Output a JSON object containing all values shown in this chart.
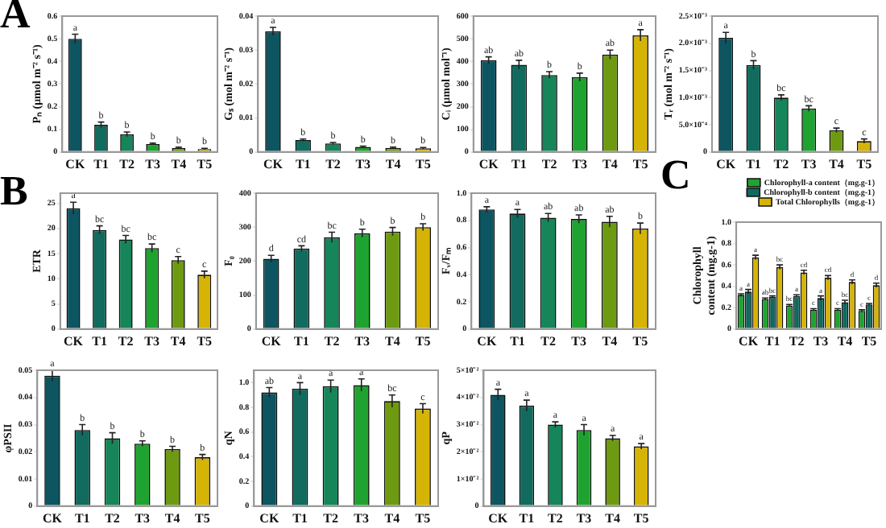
{
  "chart_data": [
    {
      "type": "bar",
      "annotations": [
        "A"
      ],
      "ylabel": "Pₙ (μmol m⁻² s⁻¹)",
      "categories": [
        "CK",
        "T1",
        "T2",
        "T3",
        "T4",
        "T5"
      ],
      "values": [
        0.5,
        0.12,
        0.078,
        0.035,
        0.018,
        0.013
      ],
      "errors": [
        0.02,
        0.012,
        0.01,
        0.004,
        0.003,
        0.003
      ],
      "value_labels": [
        "a",
        "b",
        "b",
        "b",
        "b",
        "b"
      ],
      "colors": [
        "#0d5560",
        "#116b5e",
        "#16855a",
        "#1fa330",
        "#6e9a12",
        "#d6b406"
      ],
      "ylim": [
        0,
        0.6
      ],
      "yticks": [
        0,
        0.1,
        0.2,
        0.3,
        0.4,
        0.5,
        0.6
      ],
      "grid": false,
      "legend": false
    },
    {
      "type": "bar",
      "ylabel": "Gₛ (mol m⁻² s⁻¹)",
      "categories": [
        "CK",
        "T1",
        "T2",
        "T3",
        "T4",
        "T5"
      ],
      "values": [
        0.0355,
        0.0035,
        0.0025,
        0.0015,
        0.0012,
        0.0011
      ],
      "errors": [
        0.0012,
        0.0003,
        0.0003,
        0.0002,
        0.0002,
        0.0002
      ],
      "value_labels": [
        "a",
        "b",
        "b",
        "b",
        "b",
        "b"
      ],
      "colors": [
        "#0d5560",
        "#116b5e",
        "#16855a",
        "#1fa330",
        "#6e9a12",
        "#d6b406"
      ],
      "ylim": [
        0,
        0.04
      ],
      "yticks": [
        0,
        0.01,
        0.02,
        0.03,
        0.04
      ],
      "grid": false,
      "legend": false
    },
    {
      "type": "bar",
      "ylabel": "Cᵢ (μmol mol⁻¹)",
      "categories": [
        "CK",
        "T1",
        "T2",
        "T3",
        "T4",
        "T5"
      ],
      "values": [
        405,
        385,
        340,
        330,
        430,
        515
      ],
      "errors": [
        15,
        20,
        15,
        18,
        20,
        25
      ],
      "value_labels": [
        "ab",
        "ab",
        "b",
        "b",
        "ab",
        "a"
      ],
      "colors": [
        "#0d5560",
        "#116b5e",
        "#16855a",
        "#1fa330",
        "#6e9a12",
        "#d6b406"
      ],
      "ylim": [
        0,
        600
      ],
      "yticks": [
        0,
        100,
        200,
        300,
        400,
        500,
        600
      ],
      "grid": false,
      "legend": false
    },
    {
      "type": "bar",
      "ylabel": "Tᵣ (mol m⁻² s⁻¹)",
      "categories": [
        "CK",
        "T1",
        "T2",
        "T3",
        "T4",
        "T5"
      ],
      "values": [
        0.0021,
        0.0016,
        0.001,
        0.0008,
        0.0004,
        0.0002
      ],
      "errors": [
        0.0001,
        8e-05,
        5e-05,
        5e-05,
        4e-05,
        4e-05
      ],
      "value_labels": [
        "a",
        "b",
        "bc",
        "bc",
        "c",
        "c"
      ],
      "colors": [
        "#0d5560",
        "#116b5e",
        "#16855a",
        "#1fa330",
        "#6e9a12",
        "#d6b406"
      ],
      "ylim": [
        0,
        0.0025
      ],
      "yticks": [
        0,
        {
          "value": 0.0005,
          "label": "5.0×10⁻⁴"
        },
        {
          "value": 0.001,
          "label": "1.0×10⁻³"
        },
        {
          "value": 0.0015,
          "label": "1.5×10⁻³"
        },
        {
          "value": 0.002,
          "label": "2.0×10⁻³"
        },
        {
          "value": 0.0025,
          "label": "2.5×10⁻³"
        }
      ],
      "grid": false,
      "legend": false
    },
    {
      "type": "bar",
      "annotations": [
        "B"
      ],
      "ylabel": "ETR",
      "categories": [
        "CK",
        "T1",
        "T2",
        "T3",
        "T4",
        "T5"
      ],
      "values": [
        24,
        19.7,
        17.8,
        16.1,
        13.7,
        10.8
      ],
      "errors": [
        1.2,
        0.8,
        0.8,
        0.8,
        0.7,
        0.7
      ],
      "value_labels": [
        "a",
        "bc",
        "bc",
        "bc",
        "c",
        "c"
      ],
      "colors": [
        "#0d5560",
        "#116b5e",
        "#16855a",
        "#1fa330",
        "#6e9a12",
        "#d6b406"
      ],
      "ylim": [
        0,
        27
      ],
      "yticks": [
        0,
        5,
        10,
        15,
        20,
        25
      ],
      "grid": false,
      "legend": false
    },
    {
      "type": "bar",
      "ylabel": "F₀",
      "categories": [
        "CK",
        "T1",
        "T2",
        "T3",
        "T4",
        "T5"
      ],
      "values": [
        207,
        237,
        270,
        282,
        287,
        300
      ],
      "errors": [
        10,
        8,
        15,
        12,
        12,
        10
      ],
      "value_labels": [
        "d",
        "cd",
        "bc",
        "b",
        "b",
        "b"
      ],
      "colors": [
        "#0d5560",
        "#116b5e",
        "#16855a",
        "#1fa330",
        "#6e9a12",
        "#d6b406"
      ],
      "ylim": [
        0,
        400
      ],
      "yticks": [
        0,
        100,
        200,
        300,
        400
      ],
      "grid": false,
      "legend": false
    },
    {
      "type": "bar",
      "ylabel": "Fᵥ/Fₘ",
      "categories": [
        "CK",
        "T1",
        "T2",
        "T3",
        "T4",
        "T5"
      ],
      "values": [
        0.88,
        0.85,
        0.82,
        0.81,
        0.79,
        0.74
      ],
      "errors": [
        0.02,
        0.03,
        0.03,
        0.03,
        0.04,
        0.04
      ],
      "value_labels": [
        "a",
        "a",
        "ab",
        "ab",
        "ab",
        "b"
      ],
      "colors": [
        "#0d5560",
        "#116b5e",
        "#16855a",
        "#1fa330",
        "#6e9a12",
        "#d6b406"
      ],
      "ylim": [
        0,
        1
      ],
      "yticks": [
        0,
        0.2,
        0.4,
        0.6,
        0.8,
        {
          "value": 1,
          "label": "1.0"
        }
      ],
      "grid": false,
      "legend": false
    },
    {
      "type": "bar",
      "annotations": [
        "C"
      ],
      "ylabel": "Chlorophyll content (mg.g-1)",
      "categories": [
        "CK",
        "T1",
        "T2",
        "T3",
        "T4",
        "T5"
      ],
      "ylim": [
        0,
        1
      ],
      "yticks": [
        0,
        0.2,
        0.4,
        0.6,
        0.8,
        {
          "value": 1,
          "label": "1.0"
        }
      ],
      "grid": false,
      "legend": "top right",
      "series": [
        {
          "name": "Chlorophyll-a content（mg.g-1）",
          "color": "#1fa330",
          "values": [
            0.32,
            0.28,
            0.22,
            0.18,
            0.18,
            0.17
          ],
          "errors": [
            0.01,
            0.01,
            0.01,
            0.01,
            0.01,
            0.01
          ],
          "value_labels": [
            "a",
            "ab",
            "bc",
            "c",
            "c",
            "c"
          ]
        },
        {
          "name": "Chlorophyll-b content（mg.g-1）",
          "color": "#0d6a60",
          "values": [
            0.35,
            0.3,
            0.31,
            0.29,
            0.25,
            0.23
          ],
          "errors": [
            0.02,
            0.01,
            0.01,
            0.02,
            0.02,
            0.01
          ],
          "value_labels": [
            "a",
            "bc",
            "a",
            "a",
            "bc",
            "c"
          ]
        },
        {
          "name": "Total Chlorophylls（mg.g-1）",
          "color": "#d6b406",
          "values": [
            0.67,
            0.58,
            0.53,
            0.48,
            0.44,
            0.41
          ],
          "errors": [
            0.02,
            0.02,
            0.02,
            0.02,
            0.02,
            0.02
          ],
          "value_labels": [
            "a",
            "bc",
            "cd",
            "cd",
            "d",
            "d"
          ]
        }
      ]
    },
    {
      "type": "bar",
      "ylabel": "φPSII",
      "categories": [
        "CK",
        "T1",
        "T2",
        "T3",
        "T4",
        "T5"
      ],
      "values": [
        0.048,
        0.028,
        0.025,
        0.023,
        0.021,
        0.018
      ],
      "errors": [
        0.002,
        0.002,
        0.002,
        0.001,
        0.001,
        0.001
      ],
      "value_labels": [
        "a",
        "b",
        "b",
        "b",
        "b",
        "b"
      ],
      "colors": [
        "#0d5560",
        "#116b5e",
        "#16855a",
        "#1fa330",
        "#6e9a12",
        "#d6b406"
      ],
      "ylim": [
        0,
        0.05
      ],
      "yticks": [
        0,
        0.01,
        0.02,
        0.03,
        0.04,
        0.05
      ],
      "grid": false,
      "legend": false
    },
    {
      "type": "bar",
      "ylabel": "qN",
      "categories": [
        "CK",
        "T1",
        "T2",
        "T3",
        "T4",
        "T5"
      ],
      "values": [
        0.92,
        0.95,
        0.97,
        0.98,
        0.85,
        0.79
      ],
      "errors": [
        0.04,
        0.05,
        0.05,
        0.05,
        0.05,
        0.04
      ],
      "value_labels": [
        "ab",
        "a",
        "a",
        "a",
        "bc",
        "c"
      ],
      "colors": [
        "#0d5560",
        "#116b5e",
        "#16855a",
        "#1fa330",
        "#6e9a12",
        "#d6b406"
      ],
      "ylim": [
        0,
        1.1
      ],
      "yticks": [
        0,
        0.2,
        0.4,
        0.6,
        0.8,
        {
          "value": 1,
          "label": "1.0"
        }
      ],
      "grid": false,
      "legend": false
    },
    {
      "type": "bar",
      "ylabel": "qP",
      "categories": [
        "CK",
        "T1",
        "T2",
        "T3",
        "T4",
        "T5"
      ],
      "values": [
        0.041,
        0.037,
        0.03,
        0.028,
        0.025,
        0.022
      ],
      "errors": [
        0.002,
        0.002,
        0.001,
        0.002,
        0.001,
        0.001
      ],
      "value_labels": [
        "a",
        "a",
        "a",
        "a",
        "a",
        "a"
      ],
      "colors": [
        "#0d5560",
        "#116b5e",
        "#16855a",
        "#1fa330",
        "#6e9a12",
        "#d6b406"
      ],
      "ylim": [
        0,
        0.05
      ],
      "yticks": [
        0,
        {
          "value": 0.01,
          "label": "1×10⁻²"
        },
        {
          "value": 0.02,
          "label": "2×10⁻²"
        },
        {
          "value": 0.03,
          "label": "3×10⁻²"
        },
        {
          "value": 0.04,
          "label": "4×10⁻²"
        },
        {
          "value": 0.05,
          "label": "5×10⁻²"
        }
      ],
      "grid": false,
      "legend": false
    }
  ]
}
